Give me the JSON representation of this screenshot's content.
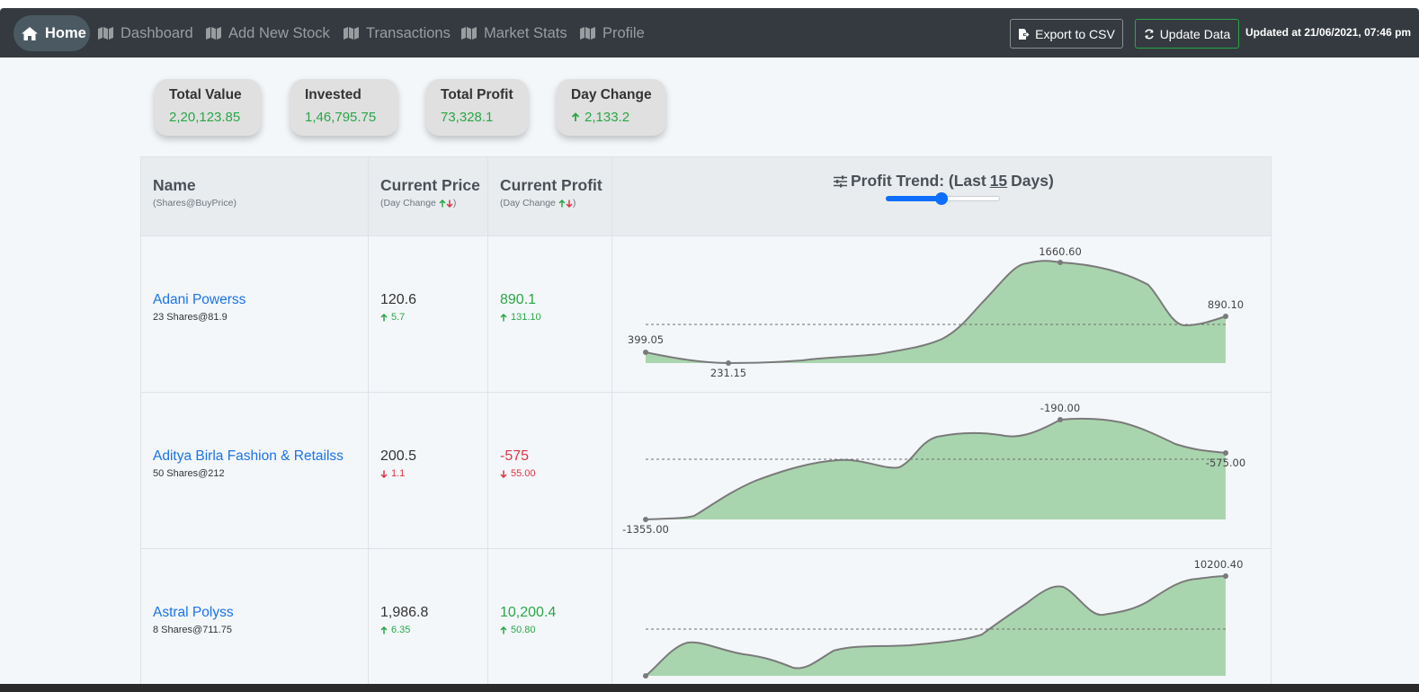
{
  "nav": {
    "items": [
      {
        "label": "Home",
        "icon": "home-icon"
      },
      {
        "label": "Dashboard",
        "icon": "map-icon"
      },
      {
        "label": "Add New Stock",
        "icon": "map-icon"
      },
      {
        "label": "Transactions",
        "icon": "map-icon"
      },
      {
        "label": "Market Stats",
        "icon": "map-icon"
      },
      {
        "label": "Profile",
        "icon": "map-icon"
      }
    ],
    "export_label": "Export to CSV",
    "update_label": "Update Data",
    "updated_text": "Updated at 21/06/2021, 07:46 pm"
  },
  "summary": [
    {
      "title": "Total Value",
      "value": "2,20,123.85"
    },
    {
      "title": "Invested",
      "value": "1,46,795.75"
    },
    {
      "title": "Total Profit",
      "value": "73,328.1"
    },
    {
      "title": "Day Change",
      "value": "2,133.2",
      "direction": "up"
    }
  ],
  "table": {
    "headers": {
      "name": "Name",
      "name_sub": "(Shares@BuyPrice)",
      "price": "Current Price",
      "price_sub_pre": "(Day Change",
      "price_sub_post": ")",
      "profit": "Current Profit",
      "profit_sub_pre": "(Day Change",
      "profit_sub_post": ")",
      "trend_pre": "Profit Trend: (Last",
      "trend_days": "15",
      "trend_post": "Days)"
    },
    "trend_slider": {
      "value": 15,
      "min": 1,
      "max": 30
    },
    "rows": [
      {
        "name": "Adani Powerss",
        "shares": "23 Shares@81.9",
        "price": "120.6",
        "price_change": "5.7",
        "price_dir": "up",
        "profit": "890.1",
        "profit_change": "131.10",
        "profit_dir": "up",
        "chart_labels": [
          "399.05",
          "231.15",
          "1660.60",
          "890.10"
        ]
      },
      {
        "name": "Aditya Birla Fashion & Retailss",
        "shares": "50 Shares@212",
        "price": "200.5",
        "price_change": "1.1",
        "price_dir": "down",
        "profit": "-575",
        "profit_change": "55.00",
        "profit_dir": "down",
        "chart_labels": [
          "-1355.00",
          "-190.00",
          "-575.00"
        ]
      },
      {
        "name": "Astral Polyss",
        "shares": "8 Shares@711.75",
        "price": "1,986.8",
        "price_change": "6.35",
        "price_dir": "up",
        "profit": "10,200.4",
        "profit_change": "50.80",
        "profit_dir": "up",
        "chart_labels": [
          "10200.40"
        ]
      }
    ]
  },
  "colors": {
    "positive": "#28a745",
    "negative": "#dc3545",
    "link": "#1a73e8",
    "navbar": "#343a40",
    "area": "#a9d5ae"
  }
}
